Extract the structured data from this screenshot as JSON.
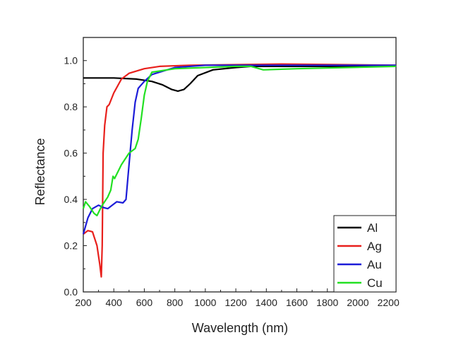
{
  "chart_data": {
    "type": "line",
    "title": "",
    "xlabel": "Wavelength (nm)",
    "ylabel": "Reflectance",
    "xlim": [
      200,
      2250
    ],
    "ylim": [
      0,
      1.1
    ],
    "xticks": [
      200,
      400,
      600,
      800,
      1000,
      1200,
      1400,
      1600,
      1800,
      2000,
      2200
    ],
    "yticks": [
      0.0,
      0.2,
      0.4,
      0.6,
      0.8,
      1.0
    ],
    "ytick_labels": [
      "0.0",
      "0.2",
      "0.4",
      "0.6",
      "0.8",
      "1.0"
    ],
    "grid": false,
    "legend_position": "bottom-right",
    "series": [
      {
        "name": "Al",
        "color": "#000000",
        "points": [
          [
            200,
            0.925
          ],
          [
            400,
            0.925
          ],
          [
            550,
            0.92
          ],
          [
            650,
            0.91
          ],
          [
            720,
            0.895
          ],
          [
            780,
            0.875
          ],
          [
            820,
            0.868
          ],
          [
            860,
            0.875
          ],
          [
            900,
            0.9
          ],
          [
            950,
            0.935
          ],
          [
            1050,
            0.96
          ],
          [
            1200,
            0.97
          ],
          [
            1300,
            0.975
          ],
          [
            1600,
            0.975
          ],
          [
            2250,
            0.975
          ]
        ]
      },
      {
        "name": "Ag",
        "color": "#e8201c",
        "points": [
          [
            200,
            0.25
          ],
          [
            230,
            0.265
          ],
          [
            260,
            0.26
          ],
          [
            290,
            0.2
          ],
          [
            308,
            0.12
          ],
          [
            318,
            0.065
          ],
          [
            324,
            0.2
          ],
          [
            330,
            0.6
          ],
          [
            340,
            0.72
          ],
          [
            355,
            0.8
          ],
          [
            370,
            0.81
          ],
          [
            400,
            0.86
          ],
          [
            450,
            0.92
          ],
          [
            500,
            0.945
          ],
          [
            600,
            0.965
          ],
          [
            700,
            0.975
          ],
          [
            900,
            0.98
          ],
          [
            1500,
            0.985
          ],
          [
            2250,
            0.98
          ]
        ]
      },
      {
        "name": "Au",
        "color": "#1c1cd8",
        "points": [
          [
            200,
            0.25
          ],
          [
            230,
            0.32
          ],
          [
            260,
            0.36
          ],
          [
            300,
            0.375
          ],
          [
            330,
            0.365
          ],
          [
            360,
            0.36
          ],
          [
            400,
            0.38
          ],
          [
            420,
            0.39
          ],
          [
            460,
            0.385
          ],
          [
            480,
            0.4
          ],
          [
            500,
            0.55
          ],
          [
            520,
            0.7
          ],
          [
            540,
            0.82
          ],
          [
            560,
            0.88
          ],
          [
            600,
            0.91
          ],
          [
            650,
            0.94
          ],
          [
            800,
            0.97
          ],
          [
            1000,
            0.98
          ],
          [
            2250,
            0.98
          ]
        ]
      },
      {
        "name": "Cu",
        "color": "#22e022",
        "points": [
          [
            200,
            0.36
          ],
          [
            215,
            0.39
          ],
          [
            240,
            0.37
          ],
          [
            270,
            0.34
          ],
          [
            290,
            0.33
          ],
          [
            320,
            0.37
          ],
          [
            360,
            0.41
          ],
          [
            380,
            0.44
          ],
          [
            395,
            0.5
          ],
          [
            405,
            0.49
          ],
          [
            450,
            0.55
          ],
          [
            500,
            0.6
          ],
          [
            540,
            0.62
          ],
          [
            560,
            0.66
          ],
          [
            580,
            0.75
          ],
          [
            600,
            0.85
          ],
          [
            620,
            0.91
          ],
          [
            650,
            0.95
          ],
          [
            800,
            0.965
          ],
          [
            1200,
            0.975
          ],
          [
            1300,
            0.975
          ],
          [
            1380,
            0.96
          ],
          [
            1600,
            0.965
          ],
          [
            2250,
            0.975
          ]
        ]
      }
    ]
  }
}
